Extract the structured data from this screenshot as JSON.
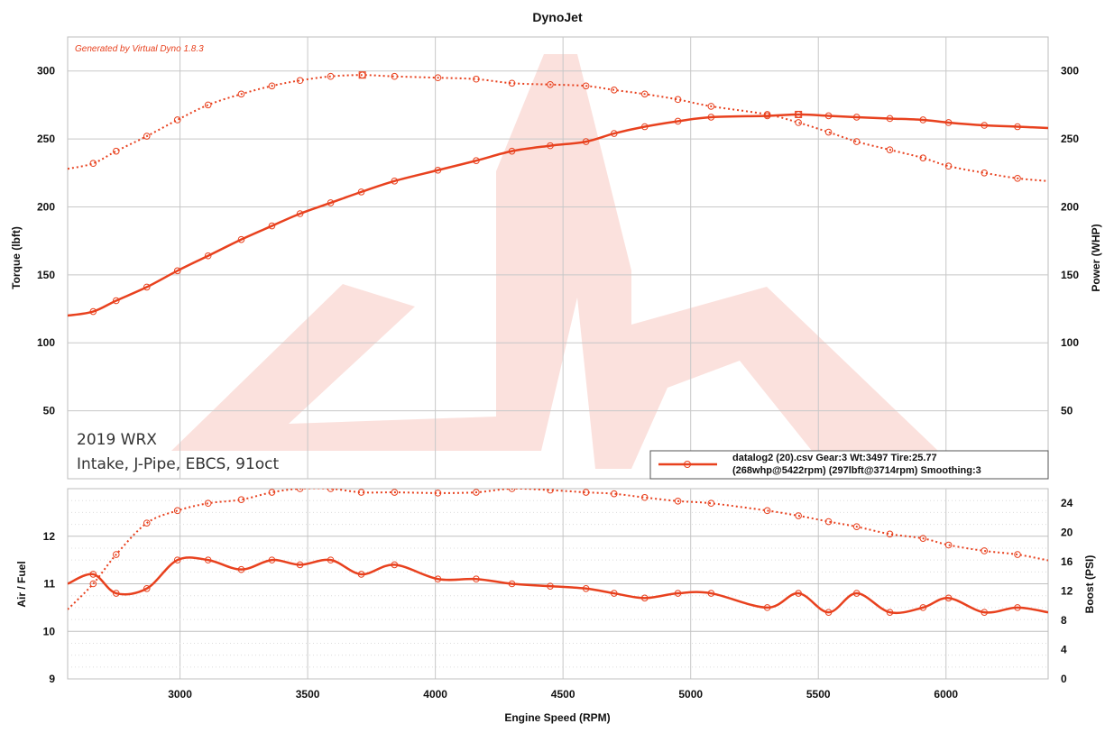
{
  "chart_data": [
    {
      "panel": "top",
      "type": "line",
      "title": "DynoJet",
      "generator_note": "Generated by Virtual Dyno 1.8.3",
      "annotation_lines": [
        "2019 WRX",
        "Intake, J-Pipe, EBCS, 91oct"
      ],
      "xlabel": "Engine Speed (RPM)",
      "ylabel_left": "Torque (lbft)",
      "ylabel_right": "Power (WHP)",
      "xlim": [
        2560,
        6400
      ],
      "ylim_left": [
        0,
        325
      ],
      "ylim_right": [
        0,
        325
      ],
      "x_ticks": [
        3000,
        3500,
        4000,
        4500,
        5000,
        5500,
        6000
      ],
      "y_ticks_left": [
        50,
        100,
        150,
        200,
        250,
        300
      ],
      "y_ticks_right": [
        50,
        100,
        150,
        200,
        250,
        300
      ],
      "grid": true,
      "legend_placement": "bottom-right",
      "legend_lines": [
        "datalog2 (20).csv Gear:3 Wt:3497 Tire:25.77",
        "(268whp@5422rpm) (297lbft@3714rpm)  Smoothing:3"
      ],
      "series": [
        {
          "axis": "right",
          "style": "solid",
          "color": "#e8411e",
          "x": [
            2560,
            2660,
            2750,
            2870,
            2990,
            3110,
            3240,
            3360,
            3470,
            3590,
            3710,
            3840,
            4010,
            4160,
            4300,
            4450,
            4590,
            4700,
            4820,
            4950,
            5080,
            5300,
            5422,
            5540,
            5650,
            5780,
            5910,
            6010,
            6150,
            6280,
            6400
          ],
          "y": [
            120,
            123,
            131,
            141,
            153,
            164,
            176,
            186,
            195,
            203,
            211,
            219,
            227,
            234,
            241,
            245,
            248,
            254,
            259,
            263,
            266,
            267,
            268,
            267,
            266,
            265,
            264,
            262,
            260,
            259,
            258
          ]
        },
        {
          "axis": "left",
          "style": "dotted",
          "color": "#e8411e",
          "x": [
            2560,
            2660,
            2750,
            2870,
            2990,
            3110,
            3240,
            3360,
            3470,
            3590,
            3714,
            3840,
            4010,
            4160,
            4300,
            4450,
            4590,
            4700,
            4820,
            4950,
            5080,
            5300,
            5422,
            5540,
            5650,
            5780,
            5910,
            6010,
            6150,
            6280,
            6400
          ],
          "y": [
            228,
            232,
            241,
            252,
            264,
            275,
            283,
            289,
            293,
            296,
            297,
            296,
            295,
            294,
            291,
            290,
            289,
            286,
            283,
            279,
            274,
            268,
            262,
            255,
            248,
            242,
            236,
            230,
            225,
            221,
            219
          ]
        }
      ]
    },
    {
      "panel": "bottom",
      "type": "line",
      "xlabel": "Engine Speed (RPM)",
      "ylabel_left": "Air / Fuel",
      "ylabel_right": "Boost (PSI)",
      "xlim": [
        2560,
        6400
      ],
      "ylim_left": [
        9,
        13
      ],
      "ylim_right": [
        0,
        26
      ],
      "y_ticks_left": [
        9,
        10,
        11,
        12
      ],
      "y_ticks_right": [
        0,
        4,
        8,
        12,
        16,
        20,
        24
      ],
      "grid": true,
      "series": [
        {
          "axis": "left",
          "style": "solid",
          "color": "#e8411e",
          "x": [
            2560,
            2660,
            2750,
            2870,
            2990,
            3110,
            3240,
            3360,
            3470,
            3590,
            3710,
            3840,
            4010,
            4160,
            4300,
            4450,
            4590,
            4700,
            4820,
            4950,
            5080,
            5300,
            5422,
            5540,
            5650,
            5780,
            5910,
            6010,
            6150,
            6280,
            6400
          ],
          "y": [
            11.0,
            11.2,
            10.8,
            10.9,
            11.5,
            11.5,
            11.3,
            11.5,
            11.4,
            11.5,
            11.2,
            11.4,
            11.1,
            11.1,
            11.0,
            10.95,
            10.9,
            10.8,
            10.7,
            10.8,
            10.8,
            10.5,
            10.8,
            10.4,
            10.8,
            10.4,
            10.5,
            10.7,
            10.4,
            10.5,
            10.4
          ]
        },
        {
          "axis": "right",
          "style": "dotted",
          "color": "#e8411e",
          "x": [
            2560,
            2660,
            2750,
            2870,
            2990,
            3110,
            3240,
            3360,
            3470,
            3590,
            3710,
            3840,
            4010,
            4160,
            4300,
            4450,
            4590,
            4700,
            4820,
            4950,
            5080,
            5300,
            5422,
            5540,
            5650,
            5780,
            5910,
            6010,
            6150,
            6280,
            6400
          ],
          "y": [
            9.5,
            13,
            17,
            21.3,
            23,
            24,
            24.5,
            25.5,
            26,
            26,
            25.5,
            25.5,
            25.4,
            25.5,
            26,
            25.8,
            25.5,
            25.3,
            24.8,
            24.3,
            24,
            23,
            22.3,
            21.5,
            20.8,
            19.8,
            19.2,
            18.3,
            17.5,
            17,
            16.2
          ]
        }
      ]
    }
  ]
}
